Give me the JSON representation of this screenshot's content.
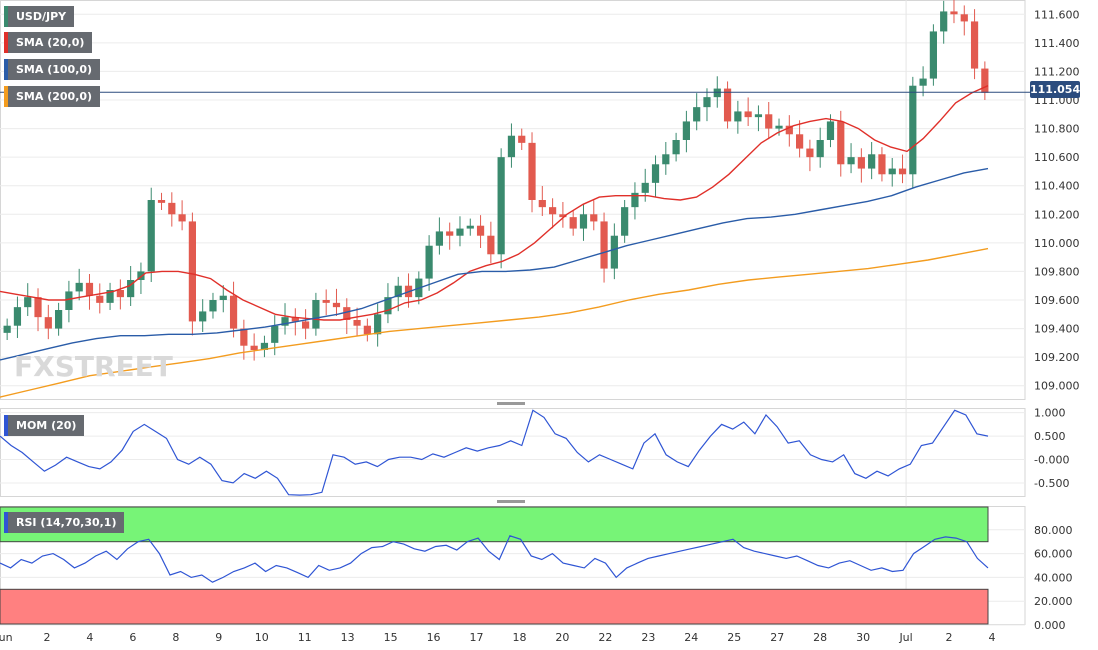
{
  "chart": {
    "symbol": "USD/JPY",
    "current_price_label": "111.054",
    "current_price": 111.054,
    "watermark": "FXSTREET",
    "colors": {
      "up": "#3a8a6e",
      "down": "#e25a4f",
      "sma20": "#e0302a",
      "sma100": "#2a5ca8",
      "sma200": "#f39c1f",
      "mom": "#2f55d4",
      "rsi": "#2f55d4",
      "rsi_over": "#77f477",
      "rsi_under": "#ff8080",
      "price_line": "#2b4c7e"
    },
    "x_labels": [
      "Jun",
      "2",
      "4",
      "6",
      "8",
      "9",
      "10",
      "11",
      "13",
      "15",
      "16",
      "17",
      "18",
      "20",
      "22",
      "23",
      "24",
      "25",
      "27",
      "28",
      "30",
      "Jul",
      "2",
      "4"
    ]
  },
  "panels": {
    "price": {
      "legend": [
        "USD/JPY",
        "SMA (20,0)",
        "SMA (100,0)",
        "SMA (200,0)"
      ],
      "y_ticks": [
        "111.600",
        "111.400",
        "111.200",
        "111.000",
        "110.800",
        "110.600",
        "110.400",
        "110.200",
        "110.000",
        "109.800",
        "109.600",
        "109.400",
        "109.200",
        "109.000"
      ]
    },
    "mom": {
      "legend": "MOM (20)",
      "y_ticks": [
        "1.000",
        "0.500",
        "-0.000",
        "-0.500"
      ]
    },
    "rsi": {
      "legend": "RSI (14,70,30,1)",
      "y_ticks": [
        "80.000",
        "60.000",
        "40.000",
        "20.000",
        "0.000"
      ]
    }
  },
  "chart_data": [
    {
      "type": "candlestick",
      "title": "USD/JPY",
      "ylim": [
        108.9,
        111.7
      ],
      "series": [
        {
          "name": "USD/JPY",
          "close": [
            109.42,
            109.55,
            109.62,
            109.48,
            109.4,
            109.53,
            109.66,
            109.72,
            109.63,
            109.58,
            109.67,
            109.62,
            109.74,
            109.8,
            110.3,
            110.28,
            110.2,
            110.15,
            109.45,
            109.52,
            109.6,
            109.63,
            109.4,
            109.28,
            109.25,
            109.3,
            109.42,
            109.48,
            109.45,
            109.4,
            109.6,
            109.58,
            109.55,
            109.46,
            109.42,
            109.36,
            109.5,
            109.62,
            109.7,
            109.62,
            109.75,
            109.98,
            110.08,
            110.05,
            110.1,
            110.12,
            110.05,
            109.92,
            110.6,
            110.75,
            110.7,
            110.3,
            110.25,
            110.2,
            110.18,
            110.1,
            110.2,
            110.15,
            109.82,
            110.05,
            110.25,
            110.35,
            110.42,
            110.55,
            110.62,
            110.72,
            110.85,
            110.95,
            111.02,
            111.08,
            110.85,
            110.92,
            110.88,
            110.9,
            110.8,
            110.82,
            110.76,
            110.66,
            110.6,
            110.72,
            110.85,
            110.55,
            110.6,
            110.52,
            110.62,
            110.48,
            110.52,
            110.48,
            111.1,
            111.15,
            111.48,
            111.62,
            111.6,
            111.55,
            111.22,
            111.05
          ]
        },
        {
          "name": "SMA (20,0)",
          "values": [
            109.66,
            109.64,
            109.62,
            109.6,
            109.6,
            109.62,
            109.64,
            109.66,
            109.7,
            109.79,
            109.8,
            109.8,
            109.78,
            109.75,
            109.67,
            109.6,
            109.55,
            109.5,
            109.48,
            109.47,
            109.46,
            109.46,
            109.48,
            109.5,
            109.53,
            109.58,
            109.6,
            109.65,
            109.72,
            109.8,
            109.84,
            109.87,
            109.92,
            110.0,
            110.1,
            110.2,
            110.27,
            110.32,
            110.33,
            110.33,
            110.33,
            110.31,
            110.3,
            110.32,
            110.39,
            110.48,
            110.59,
            110.7,
            110.77,
            110.82,
            110.85,
            110.87,
            110.85,
            110.8,
            110.72,
            110.67,
            110.64,
            110.73,
            110.85,
            110.98,
            111.05,
            111.1
          ]
        },
        {
          "name": "SMA (100,0)",
          "values": [
            109.18,
            109.22,
            109.26,
            109.3,
            109.33,
            109.35,
            109.35,
            109.36,
            109.36,
            109.37,
            109.39,
            109.41,
            109.44,
            109.47,
            109.5,
            109.54,
            109.6,
            109.66,
            109.72,
            109.78,
            109.8,
            109.8,
            109.81,
            109.83,
            109.88,
            109.93,
            109.98,
            110.02,
            110.06,
            110.1,
            110.14,
            110.17,
            110.18,
            110.2,
            110.23,
            110.26,
            110.29,
            110.33,
            110.39,
            110.44,
            110.49,
            110.52
          ]
        },
        {
          "name": "SMA (200,0)",
          "values": [
            108.92,
            108.97,
            109.02,
            109.07,
            109.1,
            109.13,
            109.16,
            109.19,
            109.23,
            109.26,
            109.29,
            109.32,
            109.35,
            109.38,
            109.4,
            109.42,
            109.44,
            109.46,
            109.48,
            109.51,
            109.55,
            109.6,
            109.64,
            109.67,
            109.71,
            109.74,
            109.76,
            109.78,
            109.8,
            109.82,
            109.85,
            109.88,
            109.92,
            109.96
          ]
        }
      ]
    },
    {
      "type": "line",
      "title": "MOM (20)",
      "ylim": [
        -0.8,
        1.1
      ],
      "series": [
        {
          "name": "MOM (20)",
          "values": [
            0.5,
            0.3,
            0.15,
            -0.05,
            -0.25,
            -0.12,
            0.05,
            -0.05,
            -0.15,
            -0.2,
            -0.05,
            0.2,
            0.6,
            0.75,
            0.6,
            0.45,
            0.0,
            -0.1,
            0.05,
            -0.1,
            -0.45,
            -0.5,
            -0.3,
            -0.4,
            -0.25,
            -0.4,
            -0.75,
            -0.76,
            -0.75,
            -0.7,
            0.1,
            0.05,
            -0.1,
            -0.05,
            -0.15,
            0.0,
            0.05,
            0.05,
            0.0,
            0.12,
            0.05,
            0.15,
            0.25,
            0.18,
            0.25,
            0.3,
            0.4,
            0.3,
            1.05,
            0.9,
            0.55,
            0.45,
            0.15,
            -0.05,
            0.1,
            0.0,
            -0.1,
            -0.2,
            0.35,
            0.55,
            0.1,
            -0.05,
            -0.15,
            0.2,
            0.5,
            0.75,
            0.65,
            0.8,
            0.55,
            0.95,
            0.7,
            0.35,
            0.4,
            0.1,
            0.0,
            -0.05,
            0.1,
            -0.3,
            -0.4,
            -0.25,
            -0.35,
            -0.2,
            -0.1,
            0.3,
            0.35,
            0.7,
            1.05,
            0.95,
            0.55,
            0.5
          ]
        }
      ]
    },
    {
      "type": "line",
      "title": "RSI (14,70,30,1)",
      "ylim": [
        0,
        100
      ],
      "overbought": 70,
      "oversold": 30,
      "series": [
        {
          "name": "RSI (14,70,30,1)",
          "values": [
            52,
            48,
            55,
            52,
            58,
            60,
            55,
            48,
            52,
            58,
            62,
            55,
            64,
            70,
            72,
            60,
            42,
            45,
            40,
            42,
            36,
            40,
            45,
            48,
            52,
            45,
            50,
            48,
            44,
            40,
            50,
            46,
            48,
            52,
            60,
            65,
            66,
            70,
            68,
            64,
            62,
            66,
            67,
            63,
            70,
            73,
            62,
            55,
            75,
            72,
            58,
            55,
            60,
            52,
            50,
            48,
            56,
            52,
            40,
            48,
            52,
            56,
            58,
            60,
            62,
            64,
            66,
            68,
            70,
            72,
            65,
            62,
            60,
            58,
            56,
            58,
            54,
            50,
            48,
            52,
            54,
            50,
            46,
            48,
            45,
            46,
            60,
            66,
            72,
            74,
            73,
            70,
            56,
            48
          ]
        }
      ]
    }
  ]
}
